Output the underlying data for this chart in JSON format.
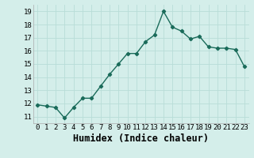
{
  "x": [
    0,
    1,
    2,
    3,
    4,
    5,
    6,
    7,
    8,
    9,
    10,
    11,
    12,
    13,
    14,
    15,
    16,
    17,
    18,
    19,
    20,
    21,
    22,
    23
  ],
  "y": [
    11.9,
    11.8,
    11.7,
    10.9,
    11.7,
    12.4,
    12.4,
    13.3,
    14.2,
    15.0,
    15.8,
    15.8,
    16.7,
    17.2,
    19.0,
    17.8,
    17.5,
    16.9,
    17.1,
    16.3,
    16.2,
    16.2,
    16.1,
    14.8
  ],
  "line_color": "#1a6b5a",
  "marker": "D",
  "markersize": 2.2,
  "linewidth": 1.0,
  "xlabel": "Humidex (Indice chaleur)",
  "xlim": [
    -0.5,
    23.5
  ],
  "ylim": [
    10.5,
    19.5
  ],
  "yticks": [
    11,
    12,
    13,
    14,
    15,
    16,
    17,
    18,
    19
  ],
  "xtick_labels": [
    "0",
    "1",
    "2",
    "3",
    "4",
    "5",
    "6",
    "7",
    "8",
    "9",
    "10",
    "11",
    "12",
    "13",
    "14",
    "15",
    "16",
    "17",
    "18",
    "19",
    "20",
    "21",
    "22",
    "23"
  ],
  "bg_color": "#d4eeea",
  "grid_color": "#b8ddd8",
  "tick_fontsize": 6.5,
  "xlabel_fontsize": 8.5,
  "xlabel_fontweight": "bold"
}
